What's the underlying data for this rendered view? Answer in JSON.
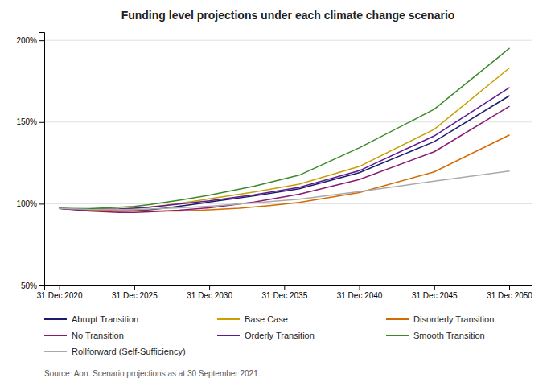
{
  "chart_data": {
    "type": "line",
    "title": "Funding level projections under each climate change scenario",
    "annotations": [
      "Source: Aon. Scenario projections as at 30 September 2021."
    ],
    "xlim": [
      2019.0,
      2051.5
    ],
    "xticks": [
      {
        "value": 2020,
        "label": "31 Dec 2020"
      },
      {
        "value": 2025,
        "label": "31 Dec 2025"
      },
      {
        "value": 2030,
        "label": "31 Dec 2030"
      },
      {
        "value": 2035,
        "label": "31 Dec 2035"
      },
      {
        "value": 2040,
        "label": "31 Dec 2040"
      },
      {
        "value": 2045,
        "label": "31 Dec 2045"
      },
      {
        "value": 2050,
        "label": "31 Dec 2050"
      }
    ],
    "ylim": [
      0.5,
      2.05
    ],
    "yticks": [
      {
        "value": 0.5,
        "label": "50%"
      },
      {
        "value": 1.0,
        "label": "100%"
      },
      {
        "value": 1.5,
        "label": "150%"
      },
      {
        "value": 2.0,
        "label": "200%"
      }
    ],
    "grid": true,
    "legend": "bottom",
    "series": [
      {
        "name": "Abrupt Transition",
        "color": "#1a1a6e",
        "x": [
          2020,
          2022,
          2024,
          2025,
          2026,
          2027,
          2028,
          2029,
          2030,
          2033,
          2036,
          2040,
          2045,
          2050
        ],
        "values": [
          0.971,
          0.96,
          0.954,
          0.956,
          0.962,
          0.972,
          0.985,
          0.997,
          1.01,
          1.048,
          1.092,
          1.19,
          1.38,
          1.66
        ]
      },
      {
        "name": "Base Case",
        "color": "#c8a000",
        "x": [
          2020,
          2022,
          2024,
          2025,
          2026,
          2027,
          2028,
          2029,
          2030,
          2033,
          2036,
          2040,
          2045,
          2050
        ],
        "values": [
          0.971,
          0.966,
          0.968,
          0.972,
          0.98,
          0.99,
          1.002,
          1.016,
          1.03,
          1.072,
          1.12,
          1.228,
          1.455,
          1.83
        ]
      },
      {
        "name": "Disorderly Transition",
        "color": "#d46b00",
        "x": [
          2020,
          2022,
          2024,
          2025,
          2026,
          2028,
          2030,
          2032,
          2034,
          2036,
          2040,
          2045,
          2050
        ],
        "values": [
          0.971,
          0.963,
          0.958,
          0.958,
          0.955,
          0.955,
          0.962,
          0.972,
          0.988,
          1.008,
          1.068,
          1.195,
          1.42
        ]
      },
      {
        "name": "No Transition",
        "color": "#8b1a6e",
        "x": [
          2020,
          2022,
          2024,
          2025,
          2026,
          2028,
          2030,
          2033,
          2036,
          2040,
          2045,
          2050
        ],
        "values": [
          0.971,
          0.955,
          0.946,
          0.946,
          0.95,
          0.96,
          0.975,
          1.01,
          1.058,
          1.148,
          1.318,
          1.595
        ]
      },
      {
        "name": "Orderly Transition",
        "color": "#5b1a8e",
        "x": [
          2020,
          2022,
          2024,
          2025,
          2026,
          2028,
          2030,
          2033,
          2036,
          2040,
          2045,
          2050
        ],
        "values": [
          0.971,
          0.965,
          0.968,
          0.972,
          0.978,
          0.998,
          1.018,
          1.055,
          1.1,
          1.202,
          1.415,
          1.71
        ]
      },
      {
        "name": "Smooth Transition",
        "color": "#3a8a2a",
        "x": [
          2020,
          2022,
          2024,
          2025,
          2026,
          2028,
          2030,
          2033,
          2036,
          2040,
          2045,
          2050
        ],
        "values": [
          0.971,
          0.97,
          0.978,
          0.984,
          0.995,
          1.022,
          1.052,
          1.108,
          1.175,
          1.342,
          1.578,
          1.95
        ]
      },
      {
        "name": "Rollforward (Self-Sufficiency)",
        "color": "#aaaaaa",
        "x": [
          2020,
          2022,
          2024,
          2025,
          2026,
          2028,
          2030,
          2033,
          2036,
          2040,
          2045,
          2050
        ],
        "values": [
          0.971,
          0.965,
          0.964,
          0.965,
          0.968,
          0.975,
          0.985,
          1.005,
          1.028,
          1.075,
          1.138,
          1.2
        ]
      }
    ]
  }
}
